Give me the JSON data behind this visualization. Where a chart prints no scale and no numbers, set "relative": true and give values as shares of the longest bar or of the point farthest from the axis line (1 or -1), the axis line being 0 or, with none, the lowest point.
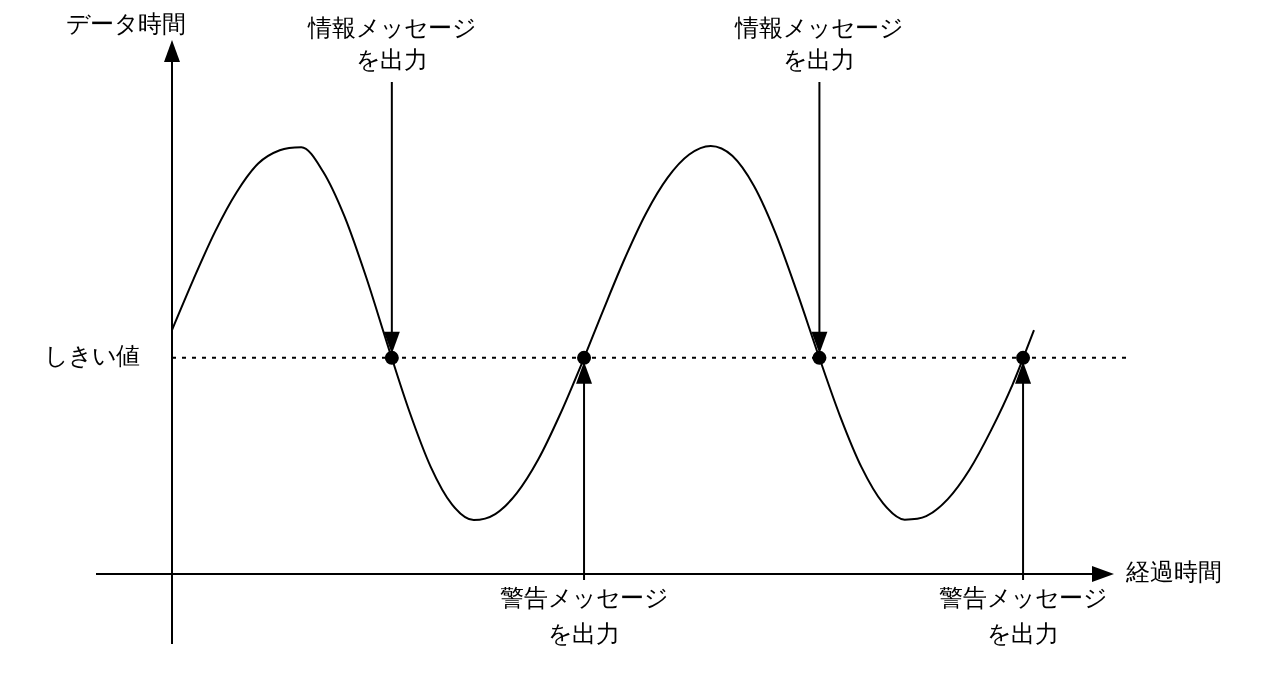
{
  "chart_data": {
    "type": "line",
    "relative": true,
    "xlabel": "経過時間",
    "ylabel": "データ時間",
    "categories": [
      null,
      null,
      null,
      null,
      null,
      null,
      null,
      null,
      null,
      null,
      null,
      null,
      null,
      null,
      null,
      null,
      null,
      null,
      null,
      null,
      null,
      null,
      null,
      null,
      null,
      null,
      null,
      null,
      null,
      null,
      null,
      null,
      null,
      null,
      null,
      null,
      null,
      null,
      null,
      null,
      null
    ],
    "series": [
      {
        "color": "#000000",
        "values": [
          0.57,
          0.689,
          0.8,
          0.892,
          0.959,
          0.99,
          0.997,
          0.941,
          0.836,
          0.695,
          0.536,
          0.382,
          0.251,
          0.162,
          0.126,
          0.14,
          0.189,
          0.268,
          0.372,
          0.49,
          0.615,
          0.736,
          0.843,
          0.926,
          0.98,
          1.0,
          0.977,
          0.907,
          0.797,
          0.659,
          0.511,
          0.369,
          0.249,
          0.165,
          0.127,
          0.135,
          0.175,
          0.243,
          0.335,
          0.442,
          0.57
        ]
      }
    ],
    "ref_lines": [
      {
        "axis": "y",
        "value": 0.505,
        "label": "しきい値",
        "line_style": "dotted"
      }
    ],
    "annotations": [
      {
        "text": "情報メッセージを出力",
        "y": 0.505
      },
      {
        "text": "警告メッセージを出力",
        "y": 0.505
      },
      {
        "text": "情報メッセージを出力",
        "y": 0.505
      },
      {
        "text": "警告メッセージを出力",
        "y": 0.505
      }
    ]
  }
}
